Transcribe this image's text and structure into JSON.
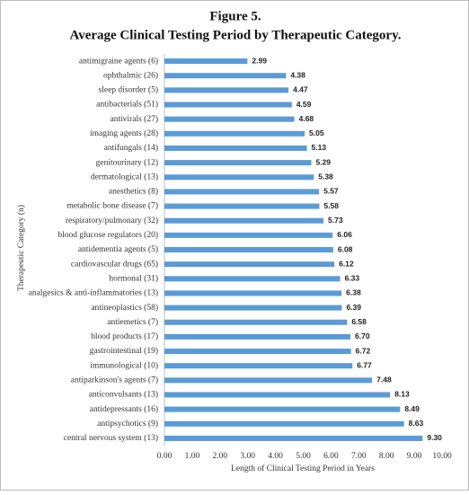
{
  "chart_data": {
    "type": "bar",
    "title": "Figure 5.",
    "subtitle": "Average Clinical Testing Period by Therapeutic Category.",
    "x_label": "Length of Clinical Testing Period in Years",
    "y_label": "Therapeutic Category (n)",
    "categories": [
      "antimigraine agents (6)",
      "ophthalmic (26)",
      "sleep disorder (5)",
      "antibacterials (51)",
      "antivirals (27)",
      "imaging agents (28)",
      "antifungals (14)",
      "genitourinary (12)",
      "dermatological (13)",
      "anesthetics (8)",
      "metabolic bone disease (7)",
      "respiratory/pulmonary (32)",
      "blood glucose regulators (20)",
      "antidementia agents (5)",
      "cardiovascular drugs (65)",
      "hormonal (31)",
      "analgesics & anti-inflammatories (13)",
      "antineoplastics (58)",
      "antiemetics (7)",
      "blood products (17)",
      "gastrointestinal (19)",
      "immunological (10)",
      "antiparkinson's agents (7)",
      "anticonvulsants (13)",
      "antidepressants (16)",
      "antipsychotics (9)",
      "central nervous system (13)"
    ],
    "values": [
      2.99,
      4.38,
      4.47,
      4.59,
      4.68,
      5.05,
      5.13,
      5.29,
      5.38,
      5.57,
      5.58,
      5.73,
      6.06,
      6.08,
      6.12,
      6.33,
      6.38,
      6.39,
      6.58,
      6.7,
      6.72,
      6.77,
      7.48,
      8.13,
      8.49,
      8.63,
      9.3
    ],
    "value_labels": [
      "2.99",
      "4.38",
      "4.47",
      "4.59",
      "4.68",
      "5.05",
      "5.13",
      "5.29",
      "5.38",
      "5.57",
      "5.58",
      "5.73",
      "6.06",
      "6.08",
      "6.12",
      "6.33",
      "6.38",
      "6.39",
      "6.58",
      "6.70",
      "6.72",
      "6.77",
      "7.48",
      "8.13",
      "8.49",
      "8.63",
      "9.30"
    ],
    "color": "#5b9bd5",
    "xlim": [
      0,
      10
    ],
    "xticks": [
      {
        "value": 0,
        "label": "0.00"
      },
      {
        "value": 1,
        "label": "1.00"
      },
      {
        "value": 2,
        "label": "2.00"
      },
      {
        "value": 3,
        "label": "3.00"
      },
      {
        "value": 4,
        "label": "4.00"
      },
      {
        "value": 5,
        "label": "5.00"
      },
      {
        "value": 6,
        "label": "6.00"
      },
      {
        "value": 7,
        "label": "7.00"
      },
      {
        "value": 8,
        "label": "8.00"
      },
      {
        "value": 9,
        "label": "9.00"
      },
      {
        "value": 10,
        "label": "10.00"
      }
    ]
  }
}
